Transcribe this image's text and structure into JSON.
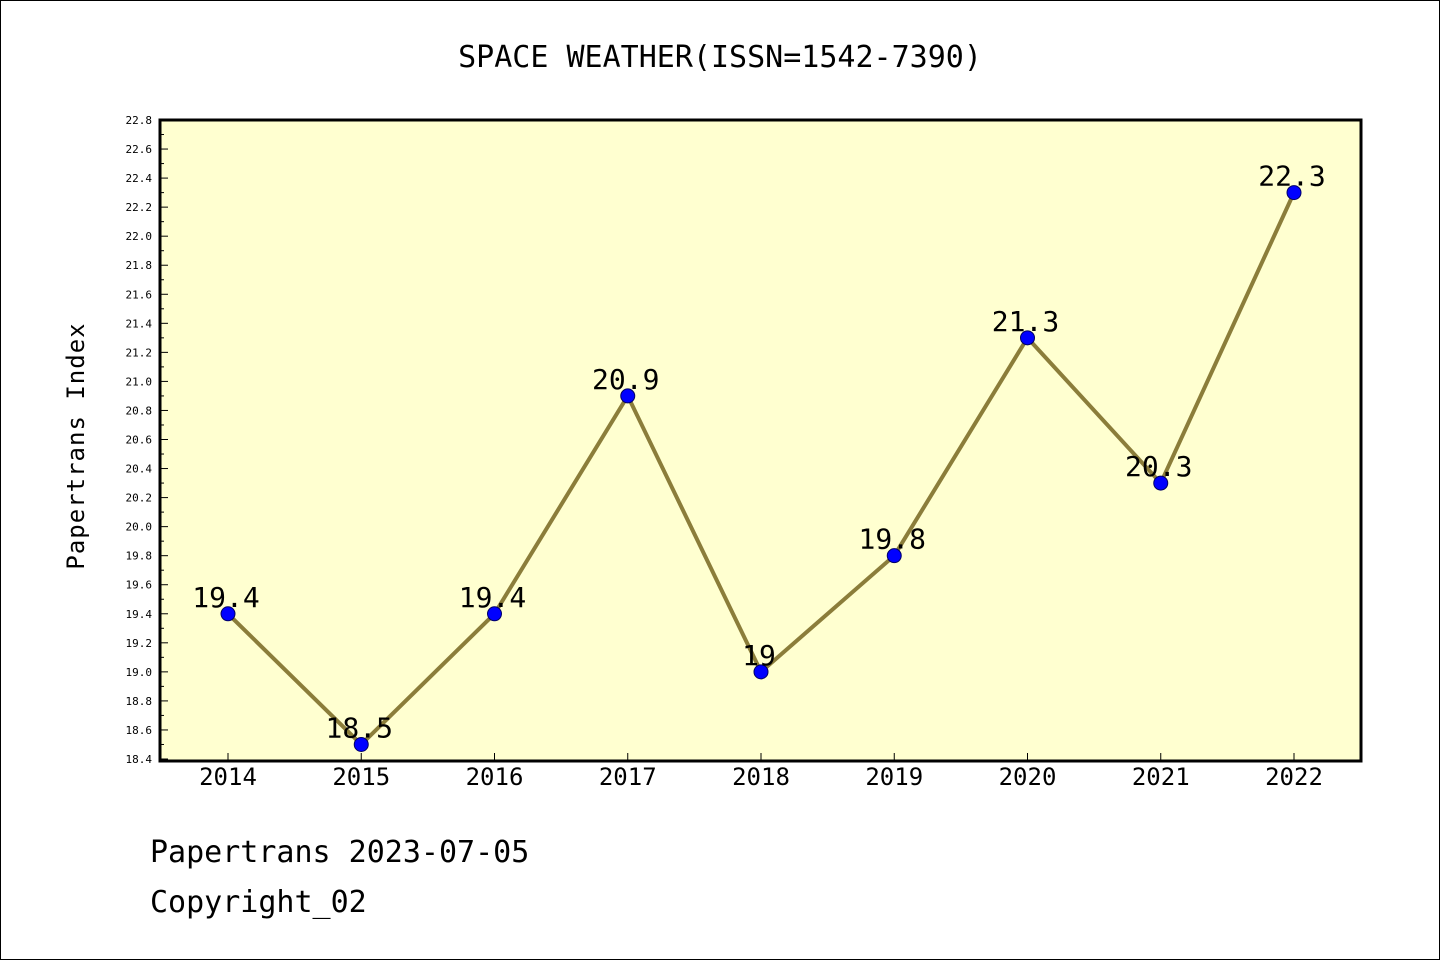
{
  "chart_data": {
    "type": "line",
    "title": "SPACE WEATHER(ISSN=1542-7390)",
    "ylabel": "Papertrans Index",
    "xlabel": "",
    "categories": [
      "2014",
      "2015",
      "2016",
      "2017",
      "2018",
      "2019",
      "2020",
      "2021",
      "2022"
    ],
    "series": [
      {
        "values": [
          19.4,
          18.5,
          19.4,
          20.9,
          19.0,
          19.8,
          21.3,
          20.3,
          22.3
        ],
        "labels": [
          "19.4",
          "18.5",
          "19.4",
          "20.9",
          "19",
          "19.8",
          "21.3",
          "20.3",
          "22.3"
        ]
      }
    ],
    "ylim": [
      18.4,
      22.8
    ],
    "yticks": [
      "18.4",
      "18.6",
      "18.8",
      "19.0",
      "19.2",
      "19.4",
      "19.6",
      "19.8",
      "20.0",
      "20.2",
      "20.4",
      "20.6",
      "20.8",
      "21.0",
      "21.2",
      "21.4",
      "21.6",
      "21.8",
      "22.0",
      "22.2",
      "22.4",
      "22.6",
      "22.8"
    ],
    "grid": false,
    "legend": "none",
    "colors": {
      "plot_background": "#ffffd0",
      "line": "#8b7d3a",
      "marker": "#0000ff",
      "axis": "#000000"
    }
  },
  "footer": {
    "line1": "Papertrans 2023-07-05",
    "line2": "Copyright_02"
  }
}
